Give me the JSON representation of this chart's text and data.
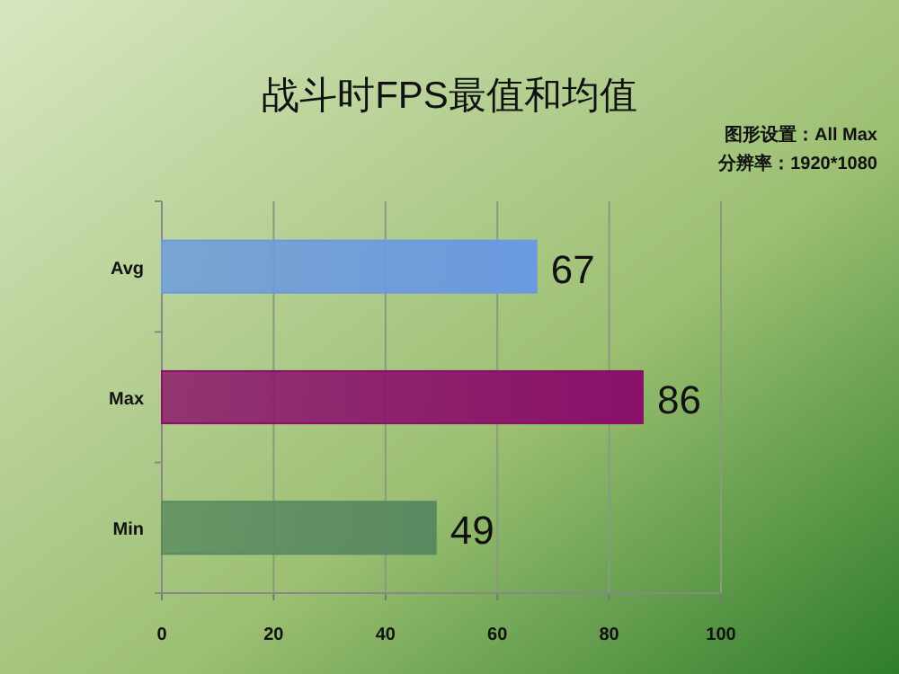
{
  "chart_data": {
    "type": "bar",
    "orientation": "horizontal",
    "title": "战斗时FPS最值和均值",
    "annotations": [
      "图形设置：All Max",
      "分辨率：1920*1080"
    ],
    "categories": [
      "Avg",
      "Max",
      "Min"
    ],
    "values": [
      67,
      86,
      49
    ],
    "colors": [
      "#6a9ae0",
      "#8a106a",
      "#5a8a60"
    ],
    "xlim": [
      0,
      100
    ],
    "xticks": [
      0,
      20,
      40,
      60,
      80,
      100
    ],
    "grid": "x",
    "data_labels": true
  }
}
